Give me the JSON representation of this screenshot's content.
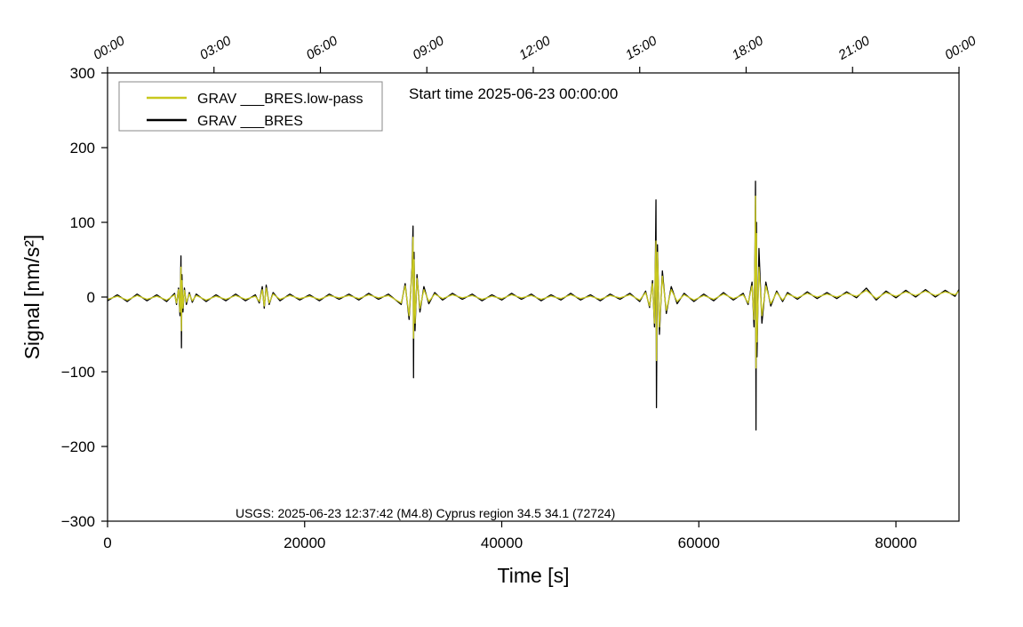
{
  "chart_data": {
    "type": "line",
    "legend_title": null,
    "annotations": [
      "Start time 2025-06-23 00:00:00",
      "USGS: 2025-06-23 12:37:42 (M4.8) Cyprus region 34.5 34.1 (72724)"
    ],
    "xlabel": "Time [s]",
    "ylabel": "Signal [nm/s²]",
    "xlim": [
      0,
      86400
    ],
    "ylim": [
      -300,
      300
    ],
    "xticks": [
      0,
      20000,
      40000,
      60000,
      80000
    ],
    "yticks": [
      {
        "value": -300,
        "label": "−300"
      },
      {
        "value": -200,
        "label": "−200"
      },
      {
        "value": -100,
        "label": "−100"
      },
      0,
      100,
      200,
      300
    ],
    "x2ticks": [
      {
        "value": 0,
        "label": "00:00"
      },
      {
        "value": 10800,
        "label": "03:00"
      },
      {
        "value": 21600,
        "label": "06:00"
      },
      {
        "value": 32400,
        "label": "09:00"
      },
      {
        "value": 43200,
        "label": "12:00"
      },
      {
        "value": 54000,
        "label": "15:00"
      },
      {
        "value": 64800,
        "label": "18:00"
      },
      {
        "value": 75600,
        "label": "21:00"
      },
      {
        "value": 86400,
        "label": "00:00"
      }
    ],
    "grid": false,
    "legend": "upper left",
    "x": [
      0,
      1000,
      2000,
      3000,
      4000,
      5000,
      6000,
      6800,
      7000,
      7200,
      7350,
      7450,
      7500,
      7550,
      7650,
      7800,
      8000,
      8300,
      8600,
      9000,
      10000,
      11000,
      12000,
      13000,
      14000,
      15000,
      15400,
      15700,
      15900,
      16100,
      16400,
      16800,
      17500,
      18500,
      19500,
      20500,
      21500,
      22500,
      23500,
      24500,
      25500,
      26500,
      27500,
      28500,
      29800,
      30200,
      30600,
      30900,
      31000,
      31050,
      31100,
      31200,
      31400,
      31700,
      32100,
      32600,
      33200,
      34000,
      35000,
      36000,
      37000,
      38000,
      39000,
      40000,
      41000,
      42000,
      43000,
      44000,
      45000,
      46000,
      47000,
      48000,
      49000,
      50000,
      51000,
      52000,
      53000,
      54000,
      54600,
      55000,
      55300,
      55500,
      55600,
      55650,
      55700,
      55800,
      56000,
      56300,
      56700,
      57200,
      57800,
      58500,
      59500,
      60500,
      61500,
      62500,
      63500,
      64500,
      65000,
      65400,
      65600,
      65700,
      65750,
      65800,
      65850,
      65900,
      66100,
      66400,
      66800,
      67300,
      67900,
      68500,
      69000,
      70000,
      71000,
      72000,
      73000,
      74000,
      75000,
      76000,
      77000,
      78000,
      79000,
      80000,
      81000,
      82000,
      83000,
      84000,
      85000,
      86000,
      86400
    ],
    "series": [
      {
        "name": "GRAV ___BRES",
        "color": "#000000",
        "values": [
          -5,
          3,
          -6,
          4,
          -5,
          3,
          -6,
          5,
          -10,
          12,
          -25,
          55,
          -68,
          30,
          -20,
          12,
          -10,
          6,
          -7,
          4,
          -6,
          3,
          -5,
          4,
          -5,
          3,
          -8,
          14,
          -15,
          16,
          -10,
          6,
          -5,
          4,
          -4,
          3,
          -5,
          4,
          -3,
          4,
          -4,
          5,
          -3,
          4,
          -10,
          18,
          -30,
          40,
          95,
          -108,
          60,
          -45,
          30,
          -20,
          14,
          -9,
          6,
          -4,
          5,
          -3,
          4,
          -5,
          3,
          -4,
          5,
          -3,
          4,
          -5,
          3,
          -4,
          5,
          -4,
          3,
          -5,
          4,
          -3,
          5,
          -6,
          8,
          -14,
          22,
          -40,
          60,
          130,
          -148,
          70,
          -50,
          35,
          -22,
          14,
          -9,
          5,
          -6,
          4,
          -5,
          6,
          -4,
          5,
          -10,
          20,
          -40,
          60,
          155,
          -178,
          100,
          -80,
          65,
          -35,
          20,
          -12,
          8,
          -6,
          6,
          -3,
          7,
          -2,
          6,
          -2,
          7,
          -1,
          12,
          -4,
          8,
          -1,
          9,
          0,
          10,
          0,
          9,
          1,
          10
        ]
      },
      {
        "name": "GRAV ___BRES.low-pass",
        "color": "#c8c81e",
        "values": [
          -3,
          1,
          -4,
          2,
          -3,
          1,
          -4,
          3,
          -8,
          10,
          -20,
          40,
          -45,
          22,
          -15,
          9,
          -7,
          4,
          -5,
          2,
          -4,
          1,
          -3,
          2,
          -3,
          1,
          -6,
          10,
          -12,
          12,
          -8,
          4,
          -3,
          2,
          -2,
          1,
          -3,
          2,
          -1,
          2,
          -2,
          3,
          -1,
          2,
          -8,
          15,
          -25,
          35,
          80,
          -55,
          50,
          -35,
          25,
          -15,
          10,
          -6,
          4,
          -2,
          3,
          -1,
          2,
          -3,
          1,
          -2,
          3,
          -1,
          2,
          -3,
          1,
          -2,
          3,
          -2,
          1,
          -3,
          2,
          -1,
          3,
          -4,
          6,
          -12,
          18,
          -35,
          50,
          75,
          -85,
          60,
          -40,
          28,
          -18,
          10,
          -6,
          3,
          -4,
          2,
          -3,
          4,
          -2,
          3,
          -8,
          15,
          -30,
          50,
          135,
          -95,
          85,
          -60,
          40,
          -25,
          15,
          -9,
          6,
          -4,
          4,
          -1,
          5,
          0,
          4,
          0,
          5,
          1,
          9,
          -2,
          6,
          1,
          7,
          2,
          8,
          2,
          7,
          3,
          8
        ]
      }
    ]
  }
}
